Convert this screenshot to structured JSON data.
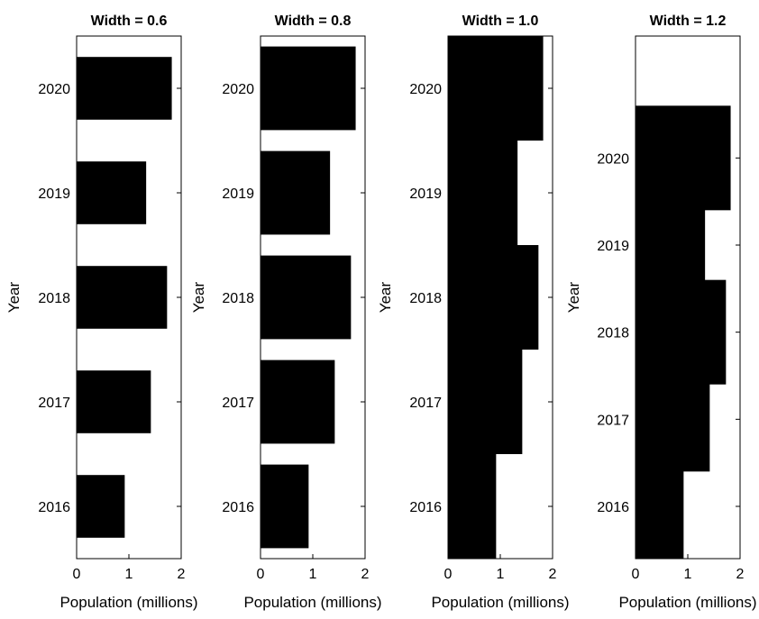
{
  "colors": {
    "bar": "#000000",
    "axis": "#000000",
    "background": "#ffffff"
  },
  "chart_data": [
    {
      "type": "bar",
      "orientation": "horizontal",
      "title": "Width = 0.6",
      "xlabel": "Population (millions)",
      "ylabel": "Year",
      "bar_width": 0.6,
      "categories": [
        "2016",
        "2017",
        "2018",
        "2019",
        "2020"
      ],
      "values": [
        0.92,
        1.42,
        1.73,
        1.33,
        1.82
      ],
      "xlim": [
        0,
        2
      ],
      "xticks": [
        "0",
        "1",
        "2"
      ]
    },
    {
      "type": "bar",
      "orientation": "horizontal",
      "title": "Width = 0.8",
      "xlabel": "Population (millions)",
      "ylabel": "Year",
      "bar_width": 0.8,
      "categories": [
        "2016",
        "2017",
        "2018",
        "2019",
        "2020"
      ],
      "values": [
        0.92,
        1.42,
        1.73,
        1.33,
        1.82
      ],
      "xlim": [
        0,
        2
      ],
      "xticks": [
        "0",
        "1",
        "2"
      ]
    },
    {
      "type": "bar",
      "orientation": "horizontal",
      "title": "Width = 1.0",
      "xlabel": "Population (millions)",
      "ylabel": "Year",
      "bar_width": 1.0,
      "categories": [
        "2016",
        "2017",
        "2018",
        "2019",
        "2020"
      ],
      "values": [
        0.92,
        1.42,
        1.73,
        1.33,
        1.82
      ],
      "xlim": [
        0,
        2
      ],
      "xticks": [
        "0",
        "1",
        "2"
      ]
    },
    {
      "type": "bar",
      "orientation": "horizontal",
      "title": "Width = 1.2",
      "xlabel": "Population (millions)",
      "ylabel": "Year",
      "bar_width": 1.2,
      "categories": [
        "2016",
        "2017",
        "2018",
        "2019",
        "2020"
      ],
      "values": [
        0.92,
        1.42,
        1.73,
        1.33,
        1.82
      ],
      "xlim": [
        0,
        2
      ],
      "xticks": [
        "0",
        "1",
        "2"
      ]
    }
  ]
}
